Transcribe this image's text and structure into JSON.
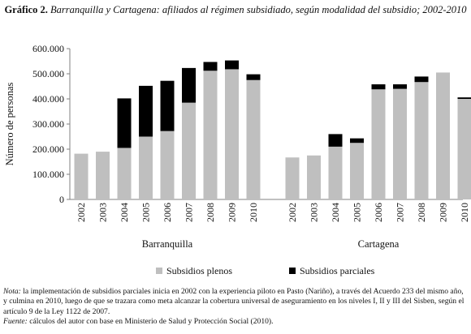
{
  "title": {
    "label": "Gráfico 2.",
    "text": "Barranquilla y Cartagena: afiliados al régimen subsidiado, según modalidad del subsidio; 2002-2010"
  },
  "note": {
    "note_label": "Nota:",
    "note_text": "la implementación de subsidios parciales inicia en 2002 con la experiencia piloto en Pasto (Nariño), a través del Acuerdo 233 del mismo año, y culmina en 2010, luego de que se trazara como meta alcanzar la cobertura universal de aseguramiento en los niveles I, II y III del Sisben, según el artículo 9 de la Ley 1122 de 2007.",
    "source_label": "Fuente:",
    "source_text": "cálculos del autor con base en Ministerio de Salud y Protección Social (2010)."
  },
  "chart_data": {
    "type": "bar",
    "stacked": true,
    "ylabel": "Número de personas",
    "ylim": [
      0,
      600000
    ],
    "yticks": [
      0,
      100000,
      200000,
      300000,
      400000,
      500000,
      600000
    ],
    "ytick_labels": [
      "0",
      "100.000",
      "200.000",
      "300.000",
      "400.000",
      "500.000",
      "600.000"
    ],
    "grid": false,
    "legend_position": "bottom",
    "series_meta": [
      {
        "key": "plenos",
        "name": "Subsidios plenos",
        "color": "#bfbfbf"
      },
      {
        "key": "parciales",
        "name": "Subsidios parciales",
        "color": "#000000"
      }
    ],
    "groups": [
      {
        "name": "Barranquilla",
        "categories": [
          "2002",
          "2003",
          "2004",
          "2005",
          "2006",
          "2007",
          "2008",
          "2009",
          "2010"
        ],
        "plenos": [
          182000,
          190000,
          205000,
          250000,
          272000,
          385000,
          512000,
          518000,
          475000
        ],
        "parciales": [
          0,
          0,
          197000,
          202000,
          200000,
          138000,
          35000,
          35000,
          23000
        ]
      },
      {
        "name": "Cartagena",
        "categories": [
          "2002",
          "2003",
          "2004",
          "2005",
          "2006",
          "2007",
          "2008",
          "2009",
          "2010"
        ],
        "plenos": [
          167000,
          175000,
          210000,
          225000,
          438000,
          440000,
          467000,
          505000,
          400000
        ],
        "parciales": [
          0,
          0,
          50000,
          18000,
          20000,
          18000,
          22000,
          0,
          6000
        ]
      }
    ]
  }
}
